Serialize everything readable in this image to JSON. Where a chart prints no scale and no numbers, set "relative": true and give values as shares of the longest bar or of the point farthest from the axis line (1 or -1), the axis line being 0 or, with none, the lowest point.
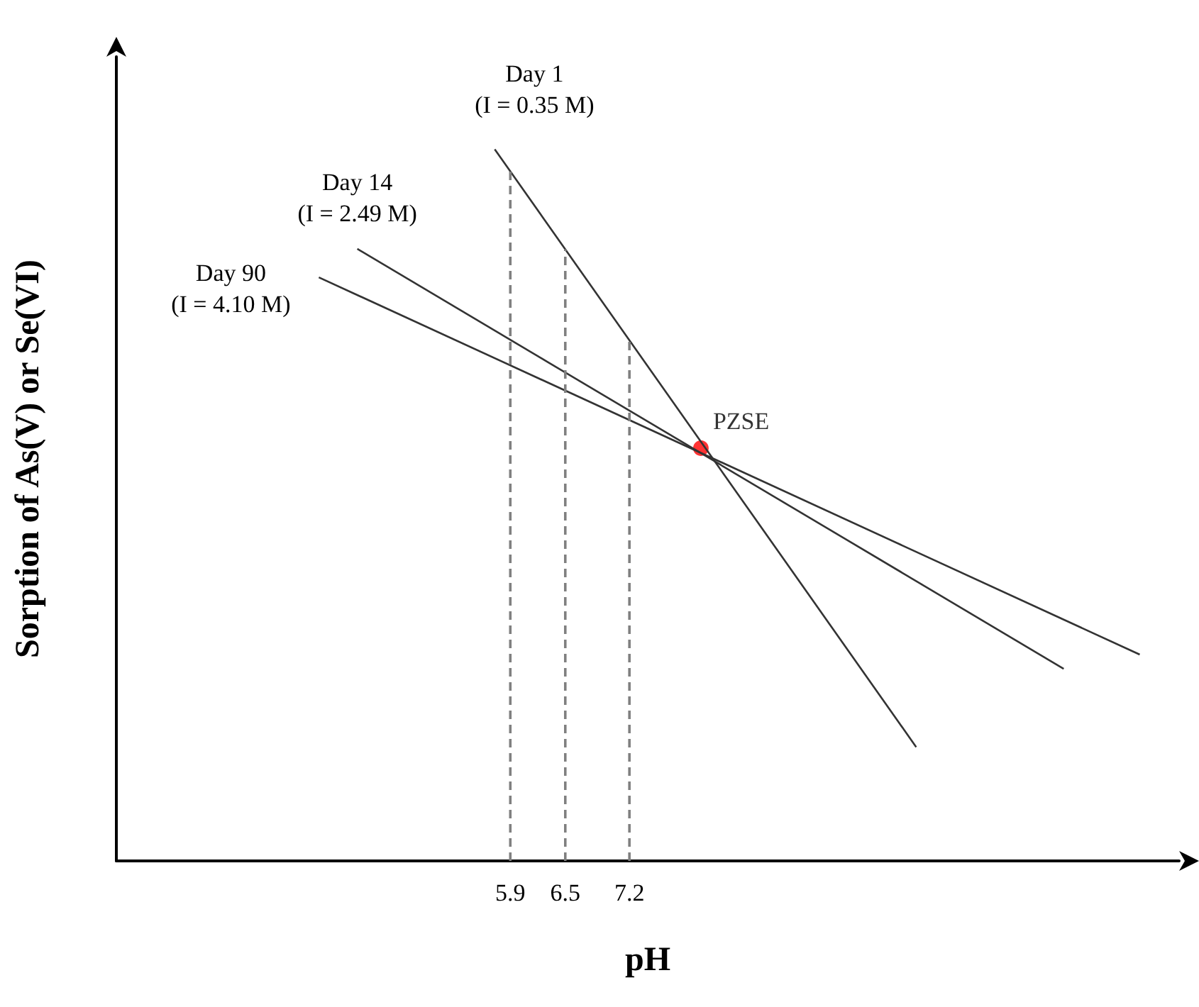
{
  "chart_data": {
    "type": "line",
    "relative": true,
    "xlabel": "pH",
    "ylabel": "Sorption of As(V) or Se(VI)",
    "xlim": [
      1.6,
      13.2
    ],
    "xticks": [
      5.9,
      6.5,
      7.2
    ],
    "legend": false,
    "marker": "none",
    "ref_lines": [
      {
        "axis": "x",
        "value": 5.9,
        "color": "#808080",
        "line_style": "dashed"
      },
      {
        "axis": "x",
        "value": 6.5,
        "color": "#808080",
        "line_style": "dashed"
      },
      {
        "axis": "x",
        "value": 7.2,
        "color": "#808080",
        "line_style": "dashed"
      }
    ],
    "series": [
      {
        "name": "Day 1 (I = 0.35 M)",
        "color": "#333333",
        "x": [
          5.73,
          10.33
        ],
        "values": [
          1,
          0.16
        ]
      },
      {
        "name": "Day 14 (I = 2.49 M)",
        "color": "#333333",
        "x": [
          4.23,
          11.94
        ],
        "values": [
          0.86,
          0.27
        ]
      },
      {
        "name": "Day 90 (I = 4.10 M)",
        "color": "#333333",
        "x": [
          3.81,
          12.77
        ],
        "values": [
          0.82,
          0.29
        ]
      },
      {
        "name": "PZSE",
        "type": "scatter",
        "marker": "circle",
        "color": "#ff0000",
        "x": [
          7.98
        ],
        "values": [
          0.58
        ]
      }
    ]
  }
}
